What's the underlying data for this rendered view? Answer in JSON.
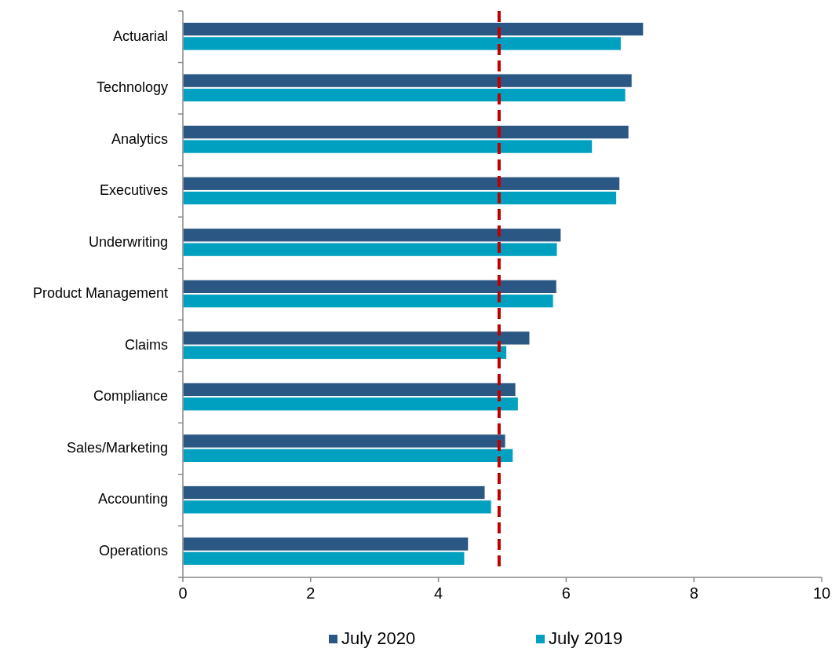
{
  "chart_data": {
    "type": "bar",
    "orientation": "horizontal",
    "categories": [
      "Actuarial",
      "Technology",
      "Analytics",
      "Executives",
      "Underwriting",
      "Product Management",
      "Claims",
      "Compliance",
      "Sales/Marketing",
      "Accounting",
      "Operations"
    ],
    "series": [
      {
        "name": "July 2020",
        "color": "#2a5783",
        "values": [
          7.21,
          7.03,
          6.98,
          6.84,
          5.92,
          5.85,
          5.43,
          5.21,
          5.05,
          4.73,
          4.47
        ]
      },
      {
        "name": "July 2019",
        "color": "#00a0c0",
        "values": [
          6.86,
          6.93,
          6.41,
          6.79,
          5.86,
          5.8,
          5.07,
          5.25,
          5.17,
          4.83,
          4.41
        ]
      }
    ],
    "xlim": [
      0,
      10
    ],
    "xticks": [
      0,
      2,
      4,
      6,
      8,
      10
    ],
    "ref_lines": [
      {
        "axis": "x",
        "value": 4.95,
        "color": "#c00000",
        "line_style": "dashed"
      }
    ],
    "grid": false,
    "legend": "bottom"
  }
}
